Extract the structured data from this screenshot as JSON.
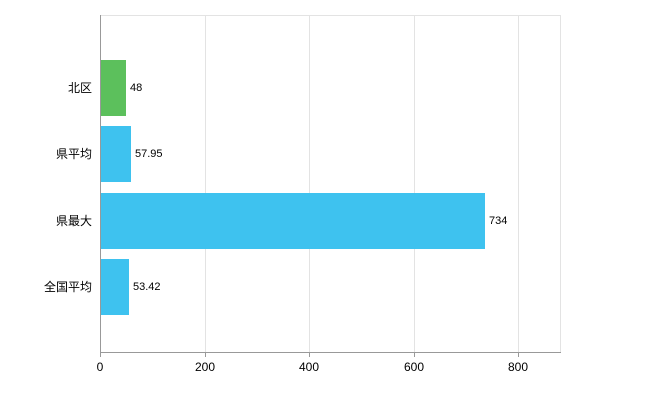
{
  "chart_data": {
    "type": "bar",
    "orientation": "horizontal",
    "title": "",
    "categories": [
      "北区",
      "県平均",
      "県最大",
      "全国平均"
    ],
    "values": [
      48,
      57.95,
      734,
      53.42
    ],
    "value_labels": [
      "48",
      "57.95",
      "734",
      "53.42"
    ],
    "bar_colors": [
      "#5cc05c",
      "#3ec2ef",
      "#3ec2ef",
      "#3ec2ef"
    ],
    "xlim": [
      0,
      880
    ],
    "xtick_values": [
      0,
      200,
      400,
      600,
      800
    ],
    "xtick_labels": [
      "0",
      "200",
      "400",
      "600",
      "800"
    ],
    "grid": true,
    "legend_position": "none",
    "axis_color": "#999999",
    "grid_color": "#e3e3e3",
    "text_color": "#000000",
    "background_color": "#ffffff"
  }
}
